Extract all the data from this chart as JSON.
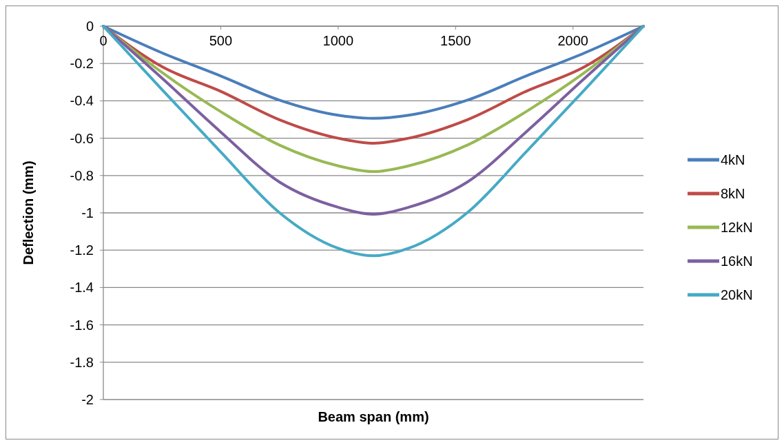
{
  "chart_data": {
    "type": "line",
    "xlabel": "Beam span (mm)",
    "ylabel": "Deflection (mm)",
    "x": [
      0,
      250,
      500,
      750,
      1000,
      1150,
      1300,
      1550,
      1800,
      2050,
      2300
    ],
    "series": [
      {
        "name": "4kN",
        "color": "#4a7ebb",
        "values": [
          0,
          -0.143,
          -0.267,
          -0.396,
          -0.477,
          -0.494,
          -0.477,
          -0.396,
          -0.267,
          -0.143,
          0
        ]
      },
      {
        "name": "8kN",
        "color": "#be4b48",
        "values": [
          0,
          -0.217,
          -0.349,
          -0.501,
          -0.6,
          -0.627,
          -0.6,
          -0.501,
          -0.349,
          -0.217,
          0
        ]
      },
      {
        "name": "12kN",
        "color": "#98b954",
        "values": [
          0,
          -0.248,
          -0.458,
          -0.637,
          -0.748,
          -0.779,
          -0.748,
          -0.637,
          -0.458,
          -0.248,
          0
        ]
      },
      {
        "name": "16kN",
        "color": "#7d60a0",
        "values": [
          0,
          -0.279,
          -0.567,
          -0.835,
          -0.97,
          -1.007,
          -0.97,
          -0.835,
          -0.567,
          -0.279,
          0
        ]
      },
      {
        "name": "20kN",
        "color": "#46aac5",
        "values": [
          0,
          -0.34,
          -0.674,
          -0.999,
          -1.19,
          -1.23,
          -1.19,
          -0.999,
          -0.674,
          -0.34,
          0
        ]
      }
    ],
    "xlim": [
      0,
      2300
    ],
    "xticks": [
      0,
      500,
      1000,
      1500,
      2000
    ],
    "ylim": [
      -2,
      0
    ],
    "yticks": [
      -2,
      -1.8,
      -1.6,
      -1.4,
      -1.2,
      -1,
      -0.8,
      -0.6,
      -0.4,
      -0.2,
      0
    ],
    "grid": "y",
    "legend": "right",
    "marker": "none",
    "line_style": "solid"
  }
}
